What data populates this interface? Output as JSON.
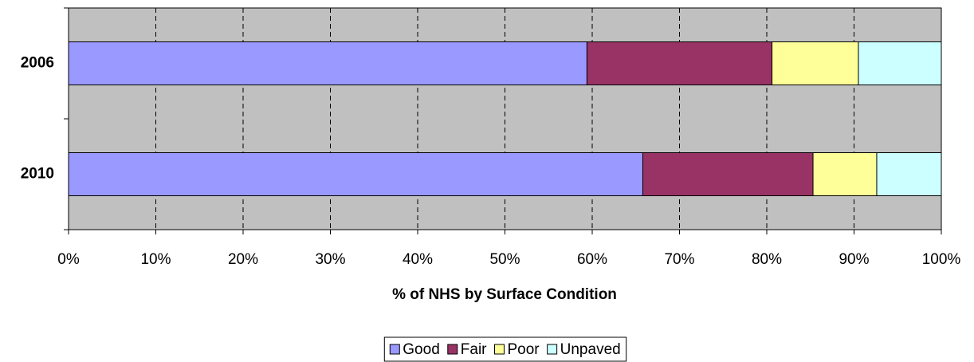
{
  "chart_data": {
    "type": "stacked-bar-horizontal",
    "x_label": "% of NHS by Surface Condition",
    "categories": [
      "2006",
      "2010"
    ],
    "series": [
      {
        "name": "Good",
        "color": "#9999ff",
        "values": [
          59.4,
          65.8
        ]
      },
      {
        "name": "Fair",
        "color": "#993366",
        "values": [
          21.2,
          19.5
        ]
      },
      {
        "name": "Poor",
        "color": "#ffff99",
        "values": [
          9.9,
          7.3
        ]
      },
      {
        "name": "Unpaved",
        "color": "#ccffff",
        "values": [
          9.5,
          7.4
        ]
      }
    ],
    "xlim": [
      0,
      100
    ],
    "xticks": [
      {
        "value": 0,
        "label": "0%"
      },
      {
        "value": 10,
        "label": "10%"
      },
      {
        "value": 20,
        "label": "20%"
      },
      {
        "value": 30,
        "label": "30%"
      },
      {
        "value": 40,
        "label": "40%"
      },
      {
        "value": 50,
        "label": "50%"
      },
      {
        "value": 60,
        "label": "60%"
      },
      {
        "value": 70,
        "label": "70%"
      },
      {
        "value": 80,
        "label": "80%"
      },
      {
        "value": 90,
        "label": "90%"
      },
      {
        "value": 100,
        "label": "100%"
      }
    ],
    "grid": true,
    "plot_background": "#c0c0c0",
    "legend": "bottom"
  }
}
